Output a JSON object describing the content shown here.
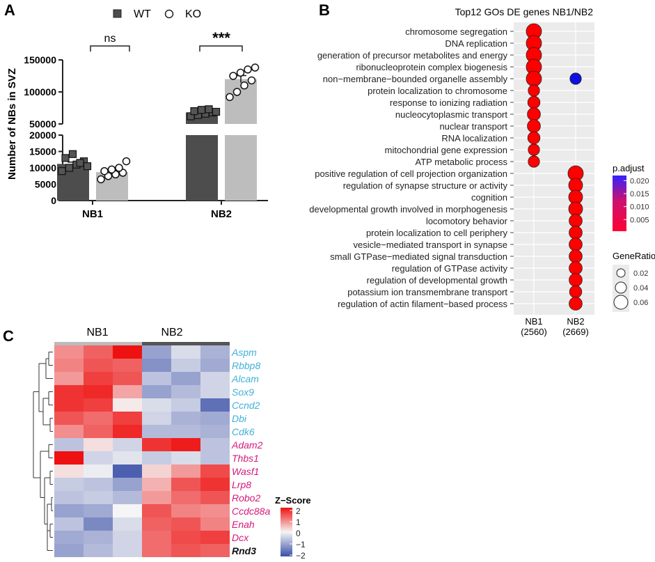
{
  "panel_labels": {
    "a": "A",
    "b": "B",
    "c": "C"
  },
  "colors": {
    "wt_bar": "#4d4d4d",
    "ko_bar": "#bdbdbd",
    "dot_red": "#ff0000",
    "dot_blue": "#1010e0",
    "heat_high": "#ee1111",
    "heat_mid": "#f5f5f5",
    "heat_low": "#3a4fa8",
    "gene_blue": "#3fb0d8",
    "gene_pink": "#d6187a",
    "gene_black": "#111111",
    "plot_bg": "#ebebeb"
  },
  "chart_data": [
    {
      "type": "bar",
      "panel": "A",
      "ylabel": "Number of NBs in SVZ",
      "categories": [
        "NB1",
        "NB2"
      ],
      "legend": [
        "WT",
        "KO"
      ],
      "ylim_lower": [
        0,
        20000
      ],
      "ylim_upper": [
        50000,
        150000
      ],
      "yticks_lower": [
        "0",
        "5000",
        "10000",
        "15000",
        "20000"
      ],
      "yticks_upper": [
        "50000",
        "100000",
        "150000"
      ],
      "series": [
        {
          "name": "WT",
          "values": [
            11200,
            68000
          ],
          "points": [
            [
              9000,
              10000,
              11000,
              12000,
              13000,
              14200,
              11500,
              10500
            ],
            [
              62000,
              64000,
              66000,
              68000,
              70000,
              72000,
              73000,
              69000
            ]
          ]
        },
        {
          "name": "KO",
          "values": [
            8700,
            120000
          ],
          "points": [
            [
              6500,
              7500,
              8000,
              8500,
              9000,
              9500,
              10000,
              12000
            ],
            [
              92000,
              100000,
              110000,
              118000,
              125000,
              130000,
              135000,
              138000
            ]
          ]
        }
      ],
      "annotations": [
        "ns",
        "***"
      ]
    },
    {
      "type": "scatter",
      "panel": "B",
      "title": "Top12 GOs DE genes NB1/NB2",
      "x_categories": [
        "NB1",
        "NB2"
      ],
      "x_counts": [
        "(2560)",
        "(2669)"
      ],
      "terms": [
        "chromosome segregation",
        "DNA replication",
        "generation of precursor metabolites and energy",
        "ribonucleoprotein complex biogenesis",
        "non−membrane−bounded organelle assembly",
        "protein localization to chromosome",
        "response to ionizing radiation",
        "nucleocytoplasmic transport",
        "nuclear transport",
        "RNA localization",
        "mitochondrial gene expression",
        "ATP metabolic process",
        "positive regulation of cell projection organization",
        "regulation of synapse structure or activity",
        "cognition",
        "developmental growth involved in morphogenesis",
        "locomotory behavior",
        "protein localization to cell periphery",
        "vesicle−mediated transport in synapse",
        "small GTPase−mediated signal transduction",
        "regulation of GTPase activity",
        "regulation of developmental growth",
        "potassium ion transmembrane transport",
        "regulation of actin filament−based process"
      ],
      "points": [
        {
          "x": "NB1",
          "term": 0,
          "gene_ratio": 0.07,
          "p_adjust": 0.0005
        },
        {
          "x": "NB1",
          "term": 1,
          "gene_ratio": 0.065,
          "p_adjust": 0.0005
        },
        {
          "x": "NB1",
          "term": 2,
          "gene_ratio": 0.065,
          "p_adjust": 0.0005
        },
        {
          "x": "NB1",
          "term": 3,
          "gene_ratio": 0.06,
          "p_adjust": 0.0005
        },
        {
          "x": "NB1",
          "term": 4,
          "gene_ratio": 0.06,
          "p_adjust": 0.0005
        },
        {
          "x": "NB1",
          "term": 5,
          "gene_ratio": 0.035,
          "p_adjust": 0.0005
        },
        {
          "x": "NB1",
          "term": 6,
          "gene_ratio": 0.04,
          "p_adjust": 0.0005
        },
        {
          "x": "NB1",
          "term": 7,
          "gene_ratio": 0.045,
          "p_adjust": 0.0005
        },
        {
          "x": "NB1",
          "term": 8,
          "gene_ratio": 0.045,
          "p_adjust": 0.0005
        },
        {
          "x": "NB1",
          "term": 9,
          "gene_ratio": 0.04,
          "p_adjust": 0.0005
        },
        {
          "x": "NB1",
          "term": 10,
          "gene_ratio": 0.035,
          "p_adjust": 0.0005
        },
        {
          "x": "NB1",
          "term": 11,
          "gene_ratio": 0.035,
          "p_adjust": 0.0005
        },
        {
          "x": "NB2",
          "term": 4,
          "gene_ratio": 0.035,
          "p_adjust": 0.022
        },
        {
          "x": "NB2",
          "term": 12,
          "gene_ratio": 0.06,
          "p_adjust": 0.0005
        },
        {
          "x": "NB2",
          "term": 13,
          "gene_ratio": 0.05,
          "p_adjust": 0.0005
        },
        {
          "x": "NB2",
          "term": 14,
          "gene_ratio": 0.05,
          "p_adjust": 0.0005
        },
        {
          "x": "NB2",
          "term": 15,
          "gene_ratio": 0.05,
          "p_adjust": 0.0005
        },
        {
          "x": "NB2",
          "term": 16,
          "gene_ratio": 0.045,
          "p_adjust": 0.0005
        },
        {
          "x": "NB2",
          "term": 17,
          "gene_ratio": 0.045,
          "p_adjust": 0.0005
        },
        {
          "x": "NB2",
          "term": 18,
          "gene_ratio": 0.045,
          "p_adjust": 0.0005
        },
        {
          "x": "NB2",
          "term": 19,
          "gene_ratio": 0.045,
          "p_adjust": 0.0005
        },
        {
          "x": "NB2",
          "term": 20,
          "gene_ratio": 0.045,
          "p_adjust": 0.0005
        },
        {
          "x": "NB2",
          "term": 21,
          "gene_ratio": 0.045,
          "p_adjust": 0.0005
        },
        {
          "x": "NB2",
          "term": 22,
          "gene_ratio": 0.04,
          "p_adjust": 0.0005
        },
        {
          "x": "NB2",
          "term": 23,
          "gene_ratio": 0.045,
          "p_adjust": 0.0005
        }
      ],
      "color_legend": {
        "title": "p.adjust",
        "ticks": [
          "0.020",
          "0.015",
          "0.010",
          "0.005"
        ],
        "range": [
          0.0005,
          0.022
        ]
      },
      "size_legend": {
        "title": "GeneRatio",
        "ticks": [
          "0.02",
          "0.04",
          "0.06"
        ]
      }
    },
    {
      "type": "heatmap",
      "panel": "C",
      "groups": [
        "NB1",
        "NB2"
      ],
      "genes": [
        {
          "name": "Aspm",
          "group": "blue",
          "z": [
            0.9,
            1.3,
            2.0,
            -1.0,
            -0.3,
            -0.8
          ]
        },
        {
          "name": "Rbbp8",
          "group": "blue",
          "z": [
            1.0,
            1.4,
            1.3,
            -1.2,
            -0.5,
            -0.9
          ]
        },
        {
          "name": "Alcam",
          "group": "blue",
          "z": [
            0.8,
            1.6,
            1.4,
            -0.6,
            -1.0,
            -0.4
          ]
        },
        {
          "name": "Sox9",
          "group": "blue",
          "z": [
            1.7,
            1.8,
            0.7,
            -1.0,
            -0.7,
            -0.4
          ]
        },
        {
          "name": "Ccnd2",
          "group": "blue",
          "z": [
            1.7,
            1.6,
            0.1,
            -0.3,
            -0.5,
            -1.6
          ]
        },
        {
          "name": "Dbi",
          "group": "blue",
          "z": [
            1.4,
            1.2,
            1.6,
            -0.4,
            -0.8,
            -0.9
          ]
        },
        {
          "name": "Cdk6",
          "group": "blue",
          "z": [
            0.9,
            1.3,
            1.8,
            -0.7,
            -0.7,
            -0.8
          ]
        },
        {
          "name": "Adam2",
          "group": "pink",
          "z": [
            -0.6,
            0.2,
            -0.4,
            1.7,
            1.9,
            -0.6
          ]
        },
        {
          "name": "Thbs1",
          "group": "pink",
          "z": [
            2.0,
            -0.4,
            -0.2,
            -0.5,
            -0.3,
            -0.6
          ]
        },
        {
          "name": "Wasf1",
          "group": "pink",
          "z": [
            0.2,
            -0.1,
            -1.8,
            0.3,
            0.8,
            1.5
          ]
        },
        {
          "name": "Lrp8",
          "group": "pink",
          "z": [
            -0.5,
            -0.6,
            -1.0,
            0.6,
            1.4,
            1.7
          ]
        },
        {
          "name": "Robo2",
          "group": "pink",
          "z": [
            -0.6,
            -0.5,
            -0.7,
            0.8,
            1.2,
            1.4
          ]
        },
        {
          "name": "Ccdc88a",
          "group": "pink",
          "z": [
            -1.0,
            -0.9,
            0.0,
            1.4,
            1.0,
            0.9
          ]
        },
        {
          "name": "Enah",
          "group": "pink",
          "z": [
            -0.6,
            -1.3,
            -0.3,
            1.3,
            1.4,
            1.0
          ]
        },
        {
          "name": "Dcx",
          "group": "pink",
          "z": [
            -0.9,
            -0.8,
            -0.4,
            1.2,
            1.5,
            1.6
          ]
        },
        {
          "name": "Rnd3",
          "group": "black",
          "z": [
            -1.0,
            -0.7,
            -0.4,
            1.2,
            1.4,
            1.3
          ]
        }
      ],
      "legend": {
        "title": "Z−Score",
        "ticks": [
          "2",
          "1",
          "0",
          "−1",
          "−2"
        ]
      }
    }
  ]
}
